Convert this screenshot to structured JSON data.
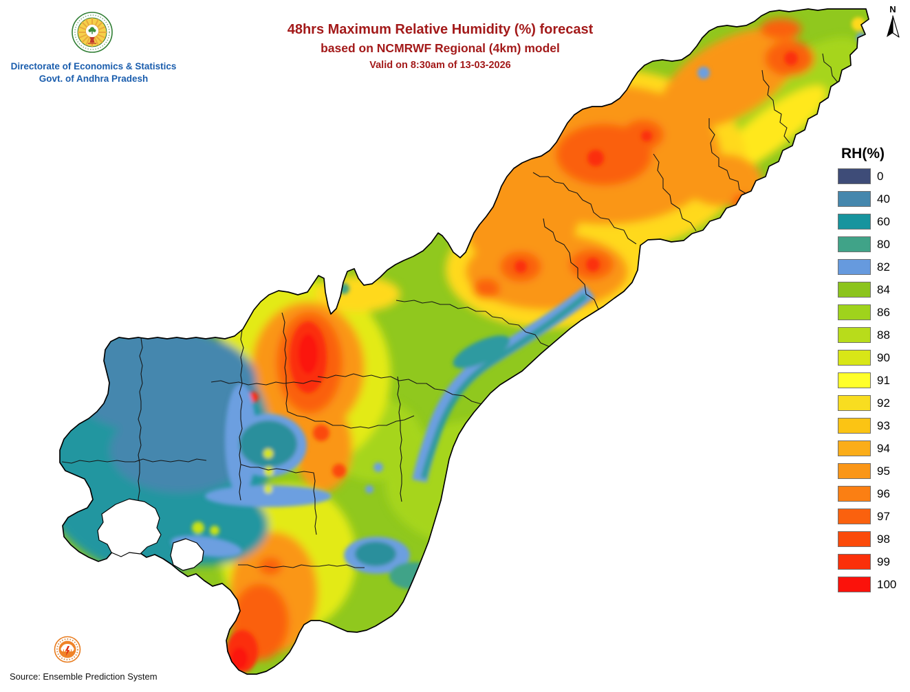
{
  "header": {
    "org_line1": "Directorate of Economics & Statistics",
    "org_line2": "Govt. of Andhra Pradesh",
    "title": "48hrs Maximum Relative Humidity (%) forecast",
    "subtitle": "based on NCMRWF Regional (4km) model",
    "valid": "Valid on 8:30am of 13-03-2026",
    "title_color": "#A31A1A",
    "org_color": "#1A5DAD"
  },
  "compass": {
    "label": "N"
  },
  "legend": {
    "title": "RH(%)",
    "entries": [
      {
        "value": "0",
        "color": "#3E4C78"
      },
      {
        "value": "40",
        "color": "#4587AD"
      },
      {
        "value": "60",
        "color": "#17949E"
      },
      {
        "value": "80",
        "color": "#40A388"
      },
      {
        "value": "82",
        "color": "#669ADE"
      },
      {
        "value": "84",
        "color": "#8CC41D"
      },
      {
        "value": "86",
        "color": "#9FD31C"
      },
      {
        "value": "88",
        "color": "#B8DC1B"
      },
      {
        "value": "90",
        "color": "#D8E617"
      },
      {
        "value": "91",
        "color": "#FFFF2A"
      },
      {
        "value": "92",
        "color": "#F8DD20"
      },
      {
        "value": "93",
        "color": "#FBC414"
      },
      {
        "value": "94",
        "color": "#FBAD19"
      },
      {
        "value": "95",
        "color": "#FA9617"
      },
      {
        "value": "96",
        "color": "#FB7F13"
      },
      {
        "value": "97",
        "color": "#FA610E"
      },
      {
        "value": "98",
        "color": "#FB4A0A"
      },
      {
        "value": "99",
        "color": "#FB300A"
      },
      {
        "value": "100",
        "color": "#FB120B"
      }
    ]
  },
  "footer": {
    "source": "Source: Ensemble Prediction System"
  }
}
